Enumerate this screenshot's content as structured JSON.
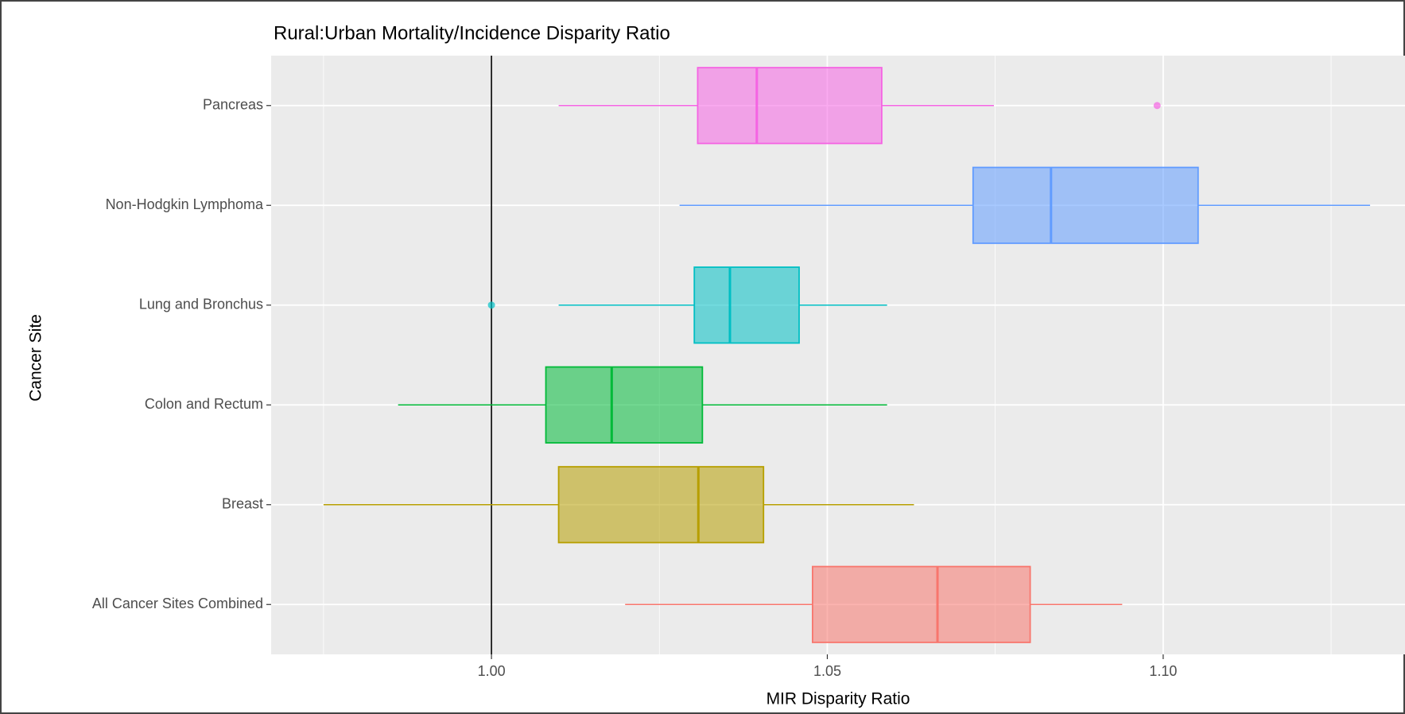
{
  "chart_data": {
    "type": "boxplot",
    "title": "Rural:Urban Mortality/Incidence Disparity Ratio",
    "x_label": "MIR Disparity Ratio",
    "y_label": "Cancer Site",
    "categories": [
      "All Cancer Sites Combined",
      "Breast",
      "Colon and Rectum",
      "Lung and Bronchus",
      "Non-Hodgkin Lymphoma",
      "Pancreas"
    ],
    "colors": [
      "#f8766d",
      "#b79f00",
      "#00ba38",
      "#00bfc4",
      "#619cff",
      "#f564e3"
    ],
    "boxes": [
      {
        "low": 1.0199,
        "q1": 1.0478,
        "median": 1.0664,
        "q3": 1.0802,
        "high": 1.0939,
        "outliers": []
      },
      {
        "low": 0.975,
        "q1": 1.01,
        "median": 1.0308,
        "q3": 1.0405,
        "high": 1.0629,
        "outliers": []
      },
      {
        "low": 0.9861,
        "q1": 1.0081,
        "median": 1.0179,
        "q3": 1.0314,
        "high": 1.0589,
        "outliers": []
      },
      {
        "low": 1.01,
        "q1": 1.0302,
        "median": 1.0355,
        "q3": 1.0458,
        "high": 1.0589,
        "outliers": [
          1.0
        ]
      },
      {
        "low": 1.028,
        "q1": 1.0717,
        "median": 1.0833,
        "q3": 1.1052,
        "high": 1.1308,
        "outliers": []
      },
      {
        "low": 1.01,
        "q1": 1.0307,
        "median": 1.0395,
        "q3": 1.0581,
        "high": 1.0748,
        "outliers": [
          1.0991
        ]
      }
    ],
    "xlim": [
      0.9672,
      1.136
    ],
    "xticks": [
      {
        "value": 1.0,
        "label": "1.00"
      },
      {
        "value": 1.05,
        "label": "1.05"
      },
      {
        "value": 1.1,
        "label": "1.10"
      }
    ],
    "minor_grid": [
      0.975,
      1.025,
      1.075,
      1.125
    ],
    "reference_line": 1.0,
    "grid": true
  }
}
